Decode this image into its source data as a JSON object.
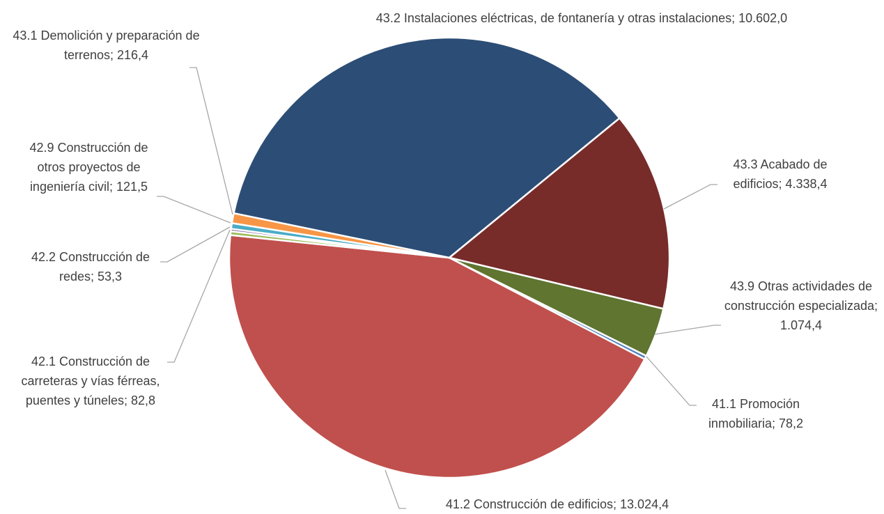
{
  "chart_data": {
    "type": "pie",
    "categories": [
      "41.1 Promoción inmobiliaria",
      "41.2 Construcción de edificios",
      "42.1 Construcción de carreteras y vías férreas, puentes y túneles",
      "42.2 Construcción de redes",
      "42.9 Construcción de otros proyectos de ingeniería civil",
      "43.1 Demolición y preparación de terrenos",
      "43.2 Instalaciones eléctricas, de fontanería y otras instalaciones",
      "43.3 Acabado de edificios",
      "43.9 Otras actividades de construcción especializada"
    ],
    "values": [
      78.2,
      13024.4,
      82.8,
      53.3,
      121.5,
      216.4,
      10602.0,
      4338.4,
      1074.4
    ],
    "value_labels": [
      "78,2",
      "13.024,4",
      "82,8",
      "53,3",
      "121,5",
      "216,4",
      "10.602,0",
      "4.338,4",
      "1.074,4"
    ],
    "label_separator": "; ",
    "colors": [
      "#4f81bd",
      "#c0504d",
      "#9bbb59",
      "#8064a2",
      "#4bacc6",
      "#f79646",
      "#2c4d75",
      "#772c2a",
      "#5f7530"
    ]
  }
}
